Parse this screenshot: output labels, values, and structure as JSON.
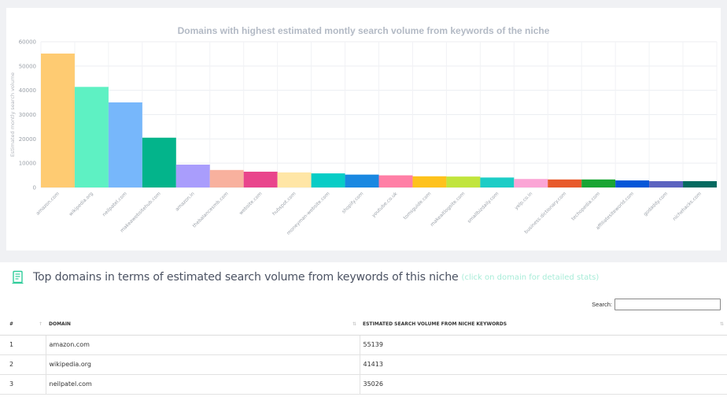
{
  "chart_data": {
    "type": "bar",
    "title": "Domains with highest estimated montly search volume from keywords of the niche",
    "ylabel": "Estimated montly search volume",
    "xlabel": "",
    "ylim": [
      0,
      60000
    ],
    "yticks": [
      0,
      10000,
      20000,
      30000,
      40000,
      50000,
      60000
    ],
    "grid": true,
    "categories": [
      "amazon.com",
      "wikipedia.org",
      "neilpatel.com",
      "makeawebsitehub.com",
      "amazon.in",
      "thebalancesmb.com",
      "website.com",
      "hubspot.com",
      "moneyman-website.com",
      "shopify.com",
      "youtube.co.uk",
      "tomsguide.com",
      "makeaitlogsite.com",
      "smallbizdaily.com",
      "yelp.co.in",
      "business.dictionary.com",
      "techopedia.com",
      "affiliatesiteworld.com",
      "godaddy.com",
      "nichehacks.com"
    ],
    "values": [
      55139,
      41413,
      35026,
      20500,
      9400,
      7200,
      6500,
      6200,
      5800,
      5300,
      5000,
      4600,
      4500,
      4100,
      3500,
      3300,
      3300,
      2900,
      2600,
      2600
    ],
    "colors": [
      "#fecb72",
      "#5ef1c3",
      "#77b7fb",
      "#03b48b",
      "#a99dfc",
      "#f8b19e",
      "#e9458c",
      "#ffe6a6",
      "#07cdc6",
      "#1a88e1",
      "#ff7fa6",
      "#fec21c",
      "#c1e53c",
      "#1ccdc6",
      "#fba5d6",
      "#e85a2c",
      "#19a533",
      "#0556d8",
      "#5c63c0",
      "#056a60"
    ]
  },
  "section": {
    "title": "Top domains in terms of estimated search volume from keywords of this niche",
    "hint": "(click on domain for detailed stats)",
    "icon": "report-document-icon",
    "accent": "#2fcc9a"
  },
  "search": {
    "label": "Search:",
    "value": ""
  },
  "table": {
    "headers": {
      "num": "#",
      "domain": "Domain",
      "volume": "Estimated search volume from niche keywords"
    },
    "rows": [
      {
        "num": "1",
        "domain": "amazon.com",
        "volume": "55139"
      },
      {
        "num": "2",
        "domain": "wikipedia.org",
        "volume": "41413"
      },
      {
        "num": "3",
        "domain": "neilpatel.com",
        "volume": "35026"
      }
    ]
  }
}
